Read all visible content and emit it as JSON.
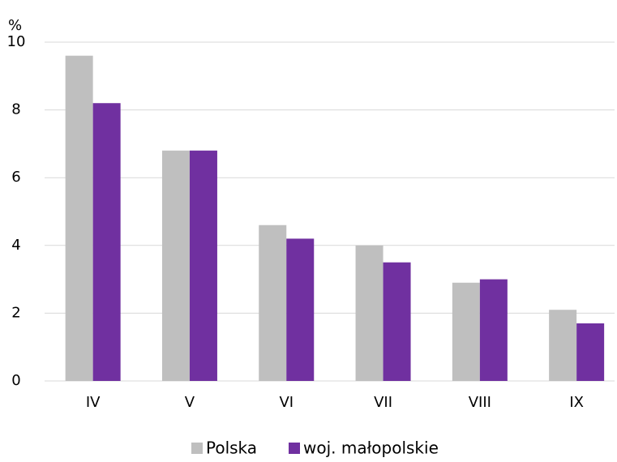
{
  "chart_data": {
    "type": "bar",
    "ylabel": "%",
    "categories": [
      "IV",
      "V",
      "VI",
      "VII",
      "VIII",
      "IX"
    ],
    "series": [
      {
        "name": "Polska",
        "color": "#bfbfbf",
        "values": [
          9.6,
          6.8,
          4.6,
          4.0,
          2.9,
          2.1
        ]
      },
      {
        "name": "woj. małopolskie",
        "color": "#7030a0",
        "values": [
          8.2,
          6.8,
          4.2,
          3.5,
          3.0,
          1.7
        ]
      }
    ],
    "ylim": [
      0,
      10
    ],
    "yticks": [
      0,
      2,
      4,
      6,
      8,
      10
    ],
    "grid": true,
    "legend": "bottom"
  }
}
